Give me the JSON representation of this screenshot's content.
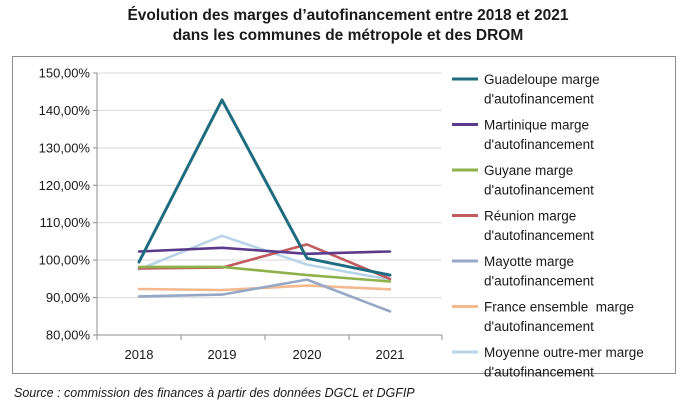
{
  "page": {
    "title_line1": "Évolution des marges d’autofinancement entre 2018 et 2021",
    "title_line2": "dans les communes de métropole et des DROM",
    "source": "Source : commission des finances à partir des données DGCL et DGFIP"
  },
  "chart_data": {
    "type": "line",
    "title": "Évolution des marges d’autofinancement entre 2018 et 2021 dans les communes de métropole et des DROM",
    "xlabel": "",
    "ylabel": "",
    "x": [
      "2018",
      "2019",
      "2020",
      "2021"
    ],
    "ylim": [
      80,
      150
    ],
    "yticks": [
      80,
      90,
      100,
      110,
      120,
      130,
      140,
      150
    ],
    "ytick_labels": [
      "80,00%",
      "90,00%",
      "100,00%",
      "110,00%",
      "120,00%",
      "130,00%",
      "140,00%",
      "150,00%"
    ],
    "grid": true,
    "legend_position": "right",
    "series": [
      {
        "name": "Guadeloupe marge d'autofinancement",
        "color": "#1f6b7f",
        "values": [
          99.5,
          142.8,
          100.5,
          96.0
        ]
      },
      {
        "name": "Martinique marge d'autofinancement",
        "color": "#5b3a8c",
        "values": [
          102.3,
          103.3,
          101.7,
          102.3
        ]
      },
      {
        "name": "Guyane marge d'autofinancement",
        "color": "#8fb14b",
        "values": [
          98.2,
          98.2,
          96.0,
          94.3
        ]
      },
      {
        "name": "Réunion marge d'autofinancement",
        "color": "#c05b5e",
        "values": [
          97.8,
          98.0,
          104.2,
          95.0
        ]
      },
      {
        "name": "Mayotte marge d'autofinancement",
        "color": "#97a8c6",
        "values": [
          90.3,
          90.8,
          94.8,
          86.3
        ]
      },
      {
        "name": "France ensemble  marge d'autofinancement",
        "color": "#f4b98f",
        "values": [
          92.3,
          92.0,
          93.2,
          92.2
        ]
      },
      {
        "name": "Moyenne outre-mer marge d'autofinancement",
        "color": "#b8d4e8",
        "values": [
          97.5,
          106.5,
          98.8,
          94.8
        ]
      }
    ]
  }
}
